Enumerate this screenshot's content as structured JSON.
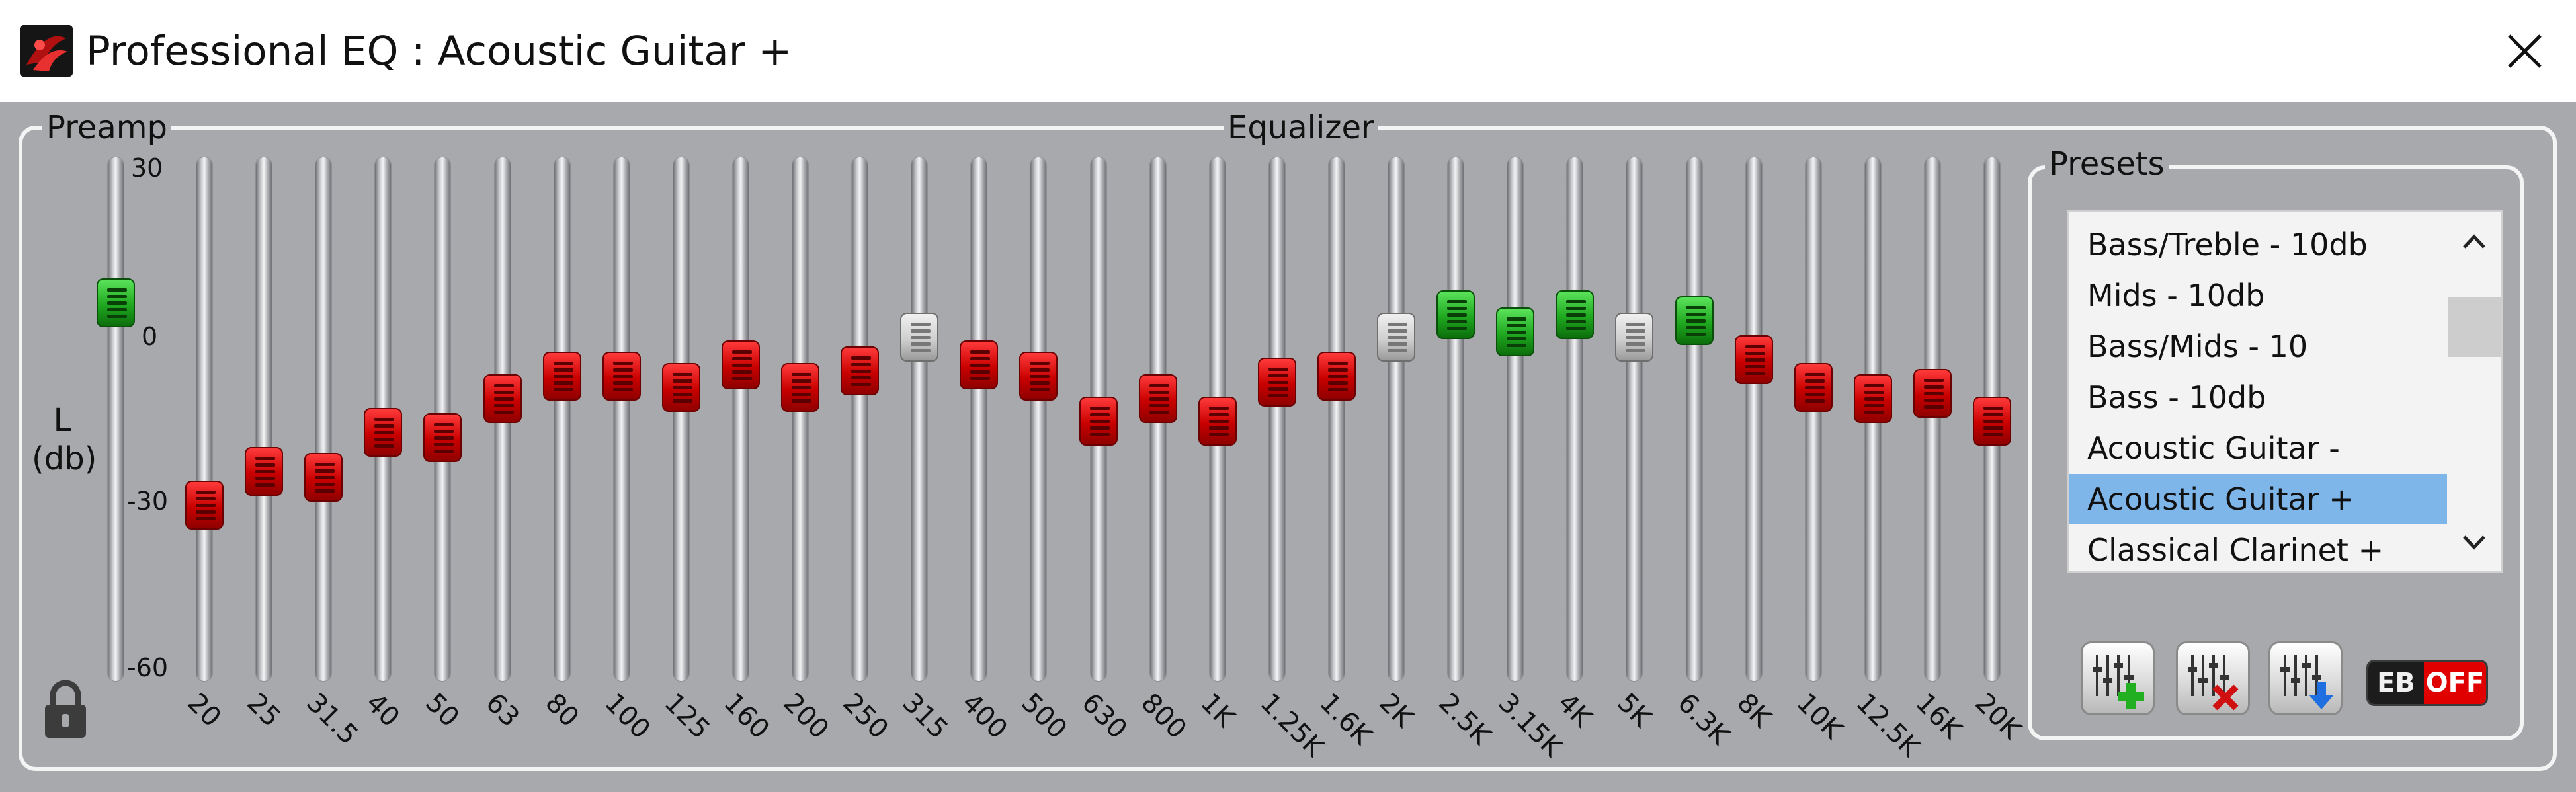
{
  "window": {
    "title": "Professional EQ : Acoustic Guitar +"
  },
  "preamp": {
    "label": "Preamp",
    "axis_label_line1": "L",
    "axis_label_line2": "(db)",
    "scale": [
      "30",
      "0",
      "-30",
      "-60"
    ],
    "value_db": 3,
    "thumb_color": "green"
  },
  "equalizer": {
    "label": "Equalizer",
    "bands": [
      {
        "freq": "20",
        "gain": -30,
        "color": "red"
      },
      {
        "freq": "25",
        "gain": -24,
        "color": "red"
      },
      {
        "freq": "31.5",
        "gain": -25,
        "color": "red"
      },
      {
        "freq": "40",
        "gain": -17,
        "color": "red"
      },
      {
        "freq": "50",
        "gain": -18,
        "color": "red"
      },
      {
        "freq": "63",
        "gain": -11,
        "color": "red"
      },
      {
        "freq": "80",
        "gain": -7,
        "color": "red"
      },
      {
        "freq": "100",
        "gain": -7,
        "color": "red"
      },
      {
        "freq": "125",
        "gain": -9,
        "color": "red"
      },
      {
        "freq": "160",
        "gain": -5,
        "color": "red"
      },
      {
        "freq": "200",
        "gain": -9,
        "color": "red"
      },
      {
        "freq": "250",
        "gain": -6,
        "color": "red"
      },
      {
        "freq": "315",
        "gain": 0,
        "color": "gray"
      },
      {
        "freq": "400",
        "gain": -5,
        "color": "red"
      },
      {
        "freq": "500",
        "gain": -7,
        "color": "red"
      },
      {
        "freq": "630",
        "gain": -15,
        "color": "red"
      },
      {
        "freq": "800",
        "gain": -11,
        "color": "red"
      },
      {
        "freq": "1K",
        "gain": -15,
        "color": "red"
      },
      {
        "freq": "1.25K",
        "gain": -8,
        "color": "red"
      },
      {
        "freq": "1.6K",
        "gain": -7,
        "color": "red"
      },
      {
        "freq": "2K",
        "gain": 0,
        "color": "gray"
      },
      {
        "freq": "2.5K",
        "gain": 4,
        "color": "green"
      },
      {
        "freq": "3.15K",
        "gain": 1,
        "color": "green"
      },
      {
        "freq": "4K",
        "gain": 4,
        "color": "green"
      },
      {
        "freq": "5K",
        "gain": 0,
        "color": "gray"
      },
      {
        "freq": "6.3K",
        "gain": 3,
        "color": "green"
      },
      {
        "freq": "8K",
        "gain": -4,
        "color": "red"
      },
      {
        "freq": "10K",
        "gain": -9,
        "color": "red"
      },
      {
        "freq": "12.5K",
        "gain": -11,
        "color": "red"
      },
      {
        "freq": "16K",
        "gain": -10,
        "color": "red"
      },
      {
        "freq": "20K",
        "gain": -15,
        "color": "red"
      }
    ]
  },
  "presets": {
    "label": "Presets",
    "items": [
      "Bass/Treble - 10db",
      "Mids - 10db",
      "Bass/Mids - 10",
      "Bass - 10db",
      "Acoustic Guitar -",
      "Acoustic Guitar +",
      "Classical Clarinet +"
    ],
    "selected_index": 5
  },
  "buttons": {
    "eb_label": "EB",
    "eb_state": "OFF"
  },
  "icons": {
    "app": "app-logo-icon",
    "close": "close-icon",
    "lock": "lock-icon",
    "add_preset": "add-preset-icon",
    "delete_preset": "delete-preset-icon",
    "save_preset": "save-preset-icon"
  },
  "colors": {
    "selected": "#7eb6ea",
    "thumb_red": "#c80000",
    "thumb_green": "#1fa81f",
    "thumb_gray": "#cfcfcf",
    "eb_off": "#e00000"
  }
}
